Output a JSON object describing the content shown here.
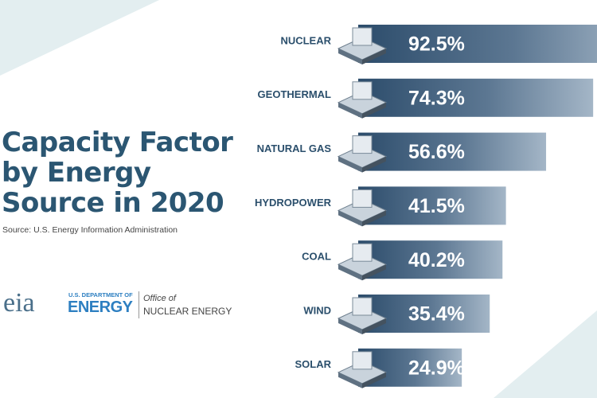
{
  "chart_data": {
    "type": "bar",
    "orientation": "horizontal",
    "title": "Capacity Factor by Energy Source in 2020",
    "source": "Source: U.S. Energy Information Administration",
    "categories": [
      "NUCLEAR",
      "GEOTHERMAL",
      "NATURAL GAS",
      "HYDROPOWER",
      "COAL",
      "WIND",
      "SOLAR"
    ],
    "values": [
      92.5,
      74.3,
      56.6,
      41.5,
      40.2,
      35.4,
      24.9
    ],
    "value_labels": [
      "92.5%",
      "74.3%",
      "56.6%",
      "41.5%",
      "40.2%",
      "35.4%",
      "24.9%"
    ],
    "color": "#2f5272"
  },
  "logos": {
    "eia": "eia",
    "doe_small": "U.S. DEPARTMENT OF",
    "doe_big": "ENERGY",
    "office": "Office of",
    "office_big": "NUCLEAR ENERGY"
  }
}
